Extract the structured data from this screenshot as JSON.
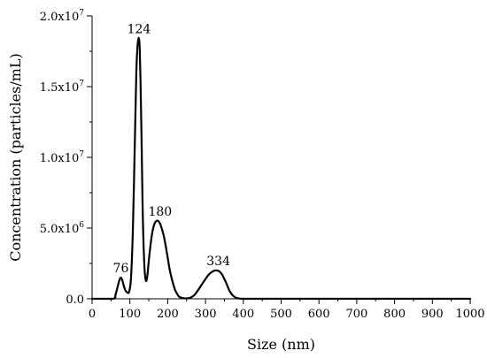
{
  "chart_data": {
    "type": "line",
    "title": "",
    "xlabel": "Size (nm)",
    "ylabel": "Concentration (particles/mL)",
    "xlim": [
      0,
      1000
    ],
    "ylim": [
      0,
      20000000
    ],
    "x_ticks": [
      0,
      100,
      200,
      300,
      400,
      500,
      600,
      700,
      800,
      900,
      1000
    ],
    "x_tick_labels": [
      "0",
      "100",
      "200",
      "300",
      "400",
      "500",
      "600",
      "700",
      "800",
      "900",
      "1000"
    ],
    "y_ticks": [
      0,
      5000000,
      10000000,
      15000000,
      20000000
    ],
    "y_tick_labels": [
      {
        "mantissa": "0.0",
        "exponent": ""
      },
      {
        "mantissa": "5.0x10",
        "exponent": "6"
      },
      {
        "mantissa": "1.0x10",
        "exponent": "7"
      },
      {
        "mantissa": "1.5x10",
        "exponent": "7"
      },
      {
        "mantissa": "2.0x10",
        "exponent": "7"
      }
    ],
    "grid": false,
    "legend": "none",
    "line_color": "#000000",
    "series": [
      {
        "x": [
          0,
          55,
          62,
          68,
          72,
          76,
          80,
          84,
          88,
          93,
          98,
          103,
          108,
          113,
          117,
          120,
          122,
          124,
          126,
          128,
          131,
          134,
          138,
          142,
          146,
          150,
          155,
          160,
          165,
          170,
          175,
          180,
          185,
          190,
          195,
          200,
          205,
          210,
          215,
          220,
          225,
          230,
          240,
          250,
          260,
          270,
          280,
          290,
          300,
          310,
          320,
          325,
          330,
          334,
          338,
          343,
          348,
          355,
          362,
          370,
          380,
          390,
          400,
          450,
          500,
          600,
          700,
          800,
          900,
          1000
        ],
        "y": [
          0,
          0,
          300000,
          900000,
          1300000,
          1500000,
          1300000,
          900000,
          600000,
          450000,
          500000,
          1500000,
          5000000,
          11000000,
          16000000,
          17800000,
          18300000,
          18400000,
          17700000,
          15500000,
          11000000,
          6000000,
          2500000,
          1300000,
          1600000,
          2700000,
          3900000,
          4800000,
          5300000,
          5500000,
          5500000,
          5300000,
          4900000,
          4400000,
          3700000,
          2900000,
          2100000,
          1500000,
          1000000,
          600000,
          350000,
          150000,
          50000,
          30000,
          80000,
          250000,
          600000,
          1000000,
          1400000,
          1750000,
          1950000,
          2000000,
          2000000,
          1980000,
          1900000,
          1750000,
          1500000,
          1100000,
          650000,
          300000,
          80000,
          20000,
          0,
          0,
          0,
          0,
          0,
          0,
          0,
          0
        ]
      }
    ],
    "annotations": [
      {
        "text": "76",
        "x": 76,
        "y": 1500000
      },
      {
        "text": "124",
        "x": 124,
        "y": 18400000
      },
      {
        "text": "180",
        "x": 180,
        "y": 5500000
      },
      {
        "text": "334",
        "x": 334,
        "y": 2000000
      }
    ]
  }
}
